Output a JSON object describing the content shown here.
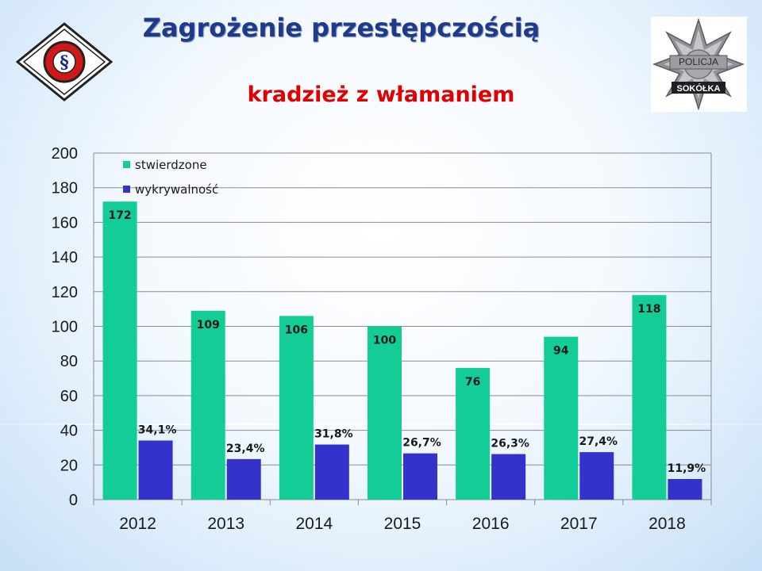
{
  "slide": {
    "title": "Zagrożenie przestępczością",
    "subtitle": "kradzież z włamaniem"
  },
  "logos": {
    "right_badge_top": "POLICJA",
    "right_badge_bottom": "SOKÓŁKA",
    "left_symbol": "§"
  },
  "colors": {
    "series1": "#13cc96",
    "series2": "#3333cc",
    "title": "#1f3a8a",
    "subtitle": "#e00000"
  },
  "chart_data": {
    "type": "bar",
    "categories": [
      "2012",
      "2013",
      "2014",
      "2015",
      "2016",
      "2017",
      "2018"
    ],
    "series": [
      {
        "name": "stwierdzone",
        "values": [
          172,
          109,
          106,
          100,
          76,
          94,
          118
        ],
        "labels": [
          "172",
          "109",
          "106",
          "100",
          "76",
          "94",
          "118"
        ]
      },
      {
        "name": "wykrywalność",
        "values": [
          34.1,
          23.4,
          31.8,
          26.7,
          26.3,
          27.4,
          11.9
        ],
        "labels": [
          "34,1%",
          "23,4%",
          "31,8%",
          "26,7%",
          "26,3%",
          "27,4%",
          "11,9%"
        ]
      }
    ],
    "yticks": [
      "0",
      "20",
      "40",
      "60",
      "80",
      "100",
      "120",
      "140",
      "160",
      "180",
      "200"
    ],
    "ylim": [
      0,
      200
    ],
    "grid": true,
    "legend_position": "top-left"
  }
}
